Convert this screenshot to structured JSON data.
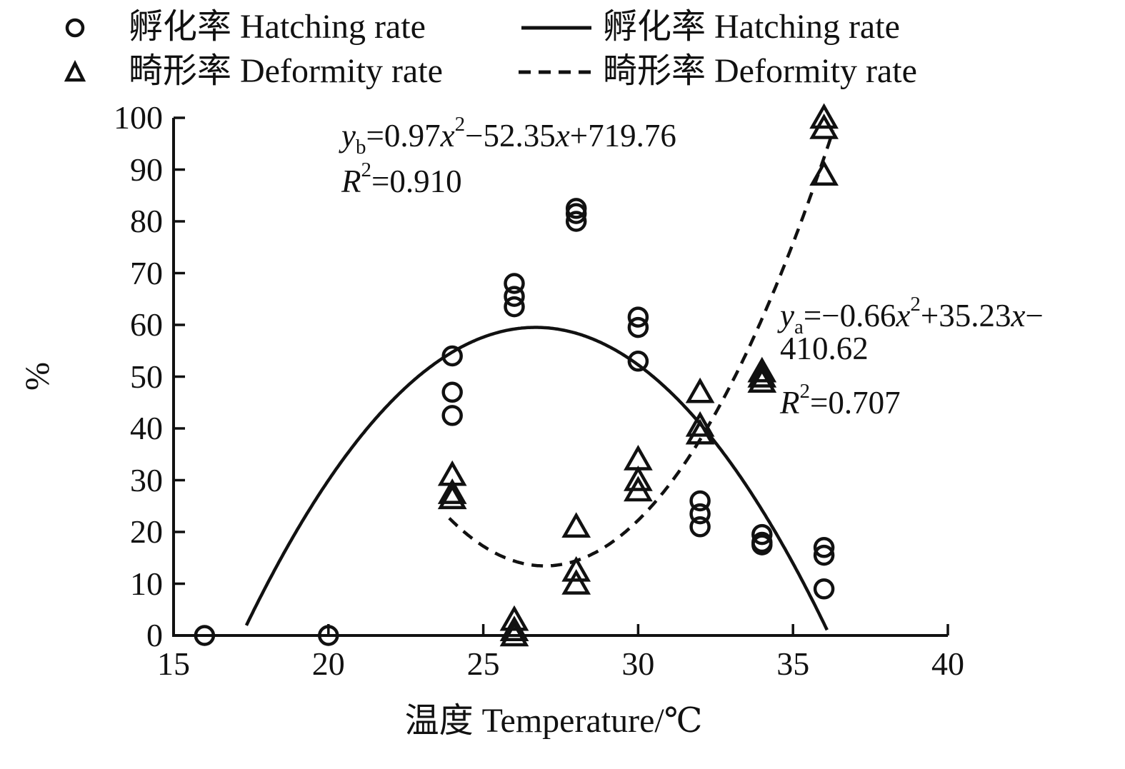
{
  "legend": {
    "marker_entries": [
      {
        "symbol": "circle",
        "label": "孵化率 Hatching rate"
      },
      {
        "symbol": "triangle",
        "label": "畸形率 Deformity rate"
      }
    ],
    "line_entries": [
      {
        "style": "solid",
        "label": "孵化率 Hatching rate"
      },
      {
        "style": "dashed",
        "label": "畸形率 Deformity rate"
      }
    ]
  },
  "equations": {
    "deformity_fit": {
      "y": "y",
      "ysub": "b",
      "t1": "=0.97",
      "x1": "x",
      "x1sup": "2",
      "t2": "−52.35",
      "x2": "x",
      "t3": "+719.76",
      "r": "R",
      "rsup": "2",
      "rval": "=0.910"
    },
    "hatching_fit": {
      "y": "y",
      "ysub": "a",
      "t1": "=−0.66",
      "x1": "x",
      "x1sup": "2",
      "t2": "+35.23",
      "x2": "x",
      "t3": "−",
      "t4": "410.62",
      "r": "R",
      "rsup": "2",
      "rval": "=0.707"
    }
  },
  "chart_data": {
    "type": "scatter",
    "title": "",
    "xlabel": "温度 Temperature/℃",
    "ylabel": "%",
    "xlim": [
      15,
      40
    ],
    "ylim": [
      0,
      100
    ],
    "xticks": [
      15,
      20,
      25,
      30,
      35,
      40
    ],
    "yticks": [
      0,
      10,
      20,
      30,
      40,
      50,
      60,
      70,
      80,
      90,
      100
    ],
    "grid": false,
    "legend_position": "top",
    "color": "#111111",
    "series": [
      {
        "name": "孵化率 Hatching rate",
        "marker": "circle",
        "points": [
          [
            16,
            0
          ],
          [
            20,
            0
          ],
          [
            24,
            54
          ],
          [
            24,
            47
          ],
          [
            24,
            42.5
          ],
          [
            26,
            68
          ],
          [
            26,
            65.5
          ],
          [
            26,
            63.5
          ],
          [
            28,
            82.5
          ],
          [
            28,
            81.5
          ],
          [
            28,
            80
          ],
          [
            30,
            61.5
          ],
          [
            30,
            59.5
          ],
          [
            30,
            53
          ],
          [
            32,
            26
          ],
          [
            32,
            23.5
          ],
          [
            32,
            21
          ],
          [
            34,
            19.5
          ],
          [
            34,
            18
          ],
          [
            34,
            17.5
          ],
          [
            36,
            17
          ],
          [
            36,
            15.5
          ],
          [
            36,
            9
          ]
        ]
      },
      {
        "name": "畸形率 Deformity rate",
        "marker": "triangle",
        "points": [
          [
            24,
            31
          ],
          [
            24,
            27.5
          ],
          [
            24,
            26.5
          ],
          [
            26,
            3
          ],
          [
            26,
            1
          ],
          [
            26,
            0
          ],
          [
            28,
            21
          ],
          [
            28,
            12.5
          ],
          [
            28,
            10
          ],
          [
            30,
            34
          ],
          [
            30,
            30
          ],
          [
            30,
            28
          ],
          [
            32,
            47
          ],
          [
            32,
            40.5
          ],
          [
            32,
            39
          ],
          [
            34,
            51
          ],
          [
            34,
            50
          ],
          [
            34,
            49
          ],
          [
            36,
            100
          ],
          [
            36,
            98
          ],
          [
            36,
            89
          ]
        ]
      }
    ],
    "curves": [
      {
        "name": "孵化率 Hatching rate fit",
        "style": "solid",
        "a": -0.66,
        "b": 35.23,
        "c": -410.62,
        "domain": [
          17.35,
          36.1
        ]
      },
      {
        "name": "畸形率 Deformity rate fit",
        "style": "dashed",
        "a": 0.97,
        "b": -52.35,
        "c": 719.76,
        "domain": [
          23.9,
          36.3
        ]
      }
    ]
  }
}
